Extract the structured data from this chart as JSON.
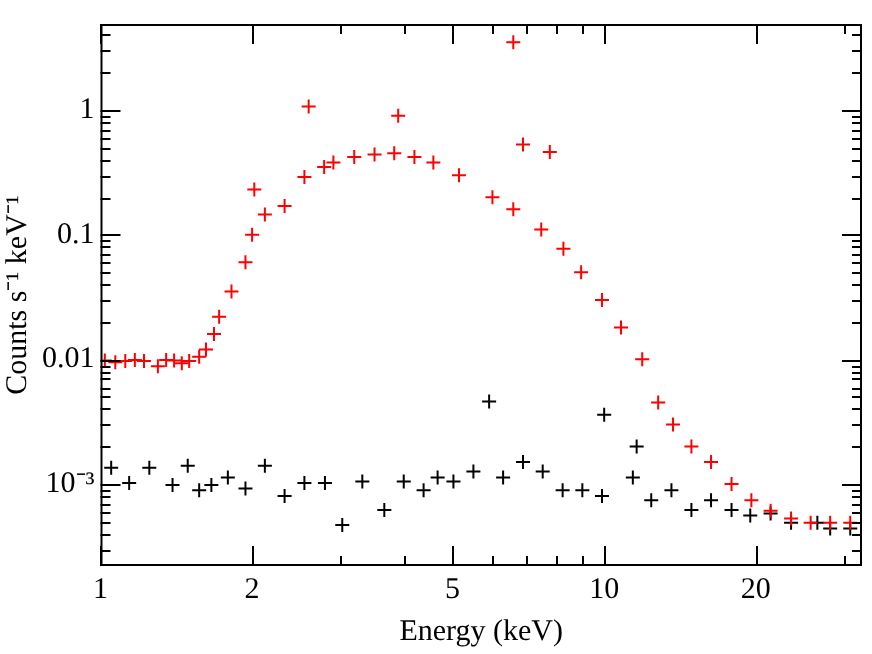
{
  "chart_data": {
    "type": "scatter",
    "xlabel": "Energy (keV)",
    "ylabel": "Counts s⁻¹ keV⁻¹",
    "log": "xy",
    "marker": "cross",
    "xlim": [
      1,
      32.5
    ],
    "ylim": [
      0.00022,
      4.9
    ],
    "xticks": [
      1,
      2,
      {
        "value": 3,
        "label": null
      },
      {
        "value": 4,
        "label": null
      },
      5,
      {
        "value": 6,
        "label": null
      },
      {
        "value": 7,
        "label": null
      },
      {
        "value": 8,
        "label": null
      },
      {
        "value": 9,
        "label": null
      },
      10,
      20,
      {
        "value": 30,
        "label": null
      }
    ],
    "yticks": [
      {
        "value": 0.0003,
        "label": null
      },
      {
        "value": 0.0004,
        "label": null
      },
      {
        "value": 0.0005,
        "label": null
      },
      {
        "value": 0.0006,
        "label": null
      },
      {
        "value": 0.0007,
        "label": null
      },
      {
        "value": 0.0008,
        "label": null
      },
      {
        "value": 0.0009,
        "label": null
      },
      {
        "value": 0.001,
        "label": "10⁻³"
      },
      {
        "value": 0.002,
        "label": null
      },
      {
        "value": 0.003,
        "label": null
      },
      {
        "value": 0.004,
        "label": null
      },
      {
        "value": 0.005,
        "label": null
      },
      {
        "value": 0.006,
        "label": null
      },
      {
        "value": 0.007,
        "label": null
      },
      {
        "value": 0.008,
        "label": null
      },
      {
        "value": 0.009,
        "label": null
      },
      0.01,
      {
        "value": 0.02,
        "label": null
      },
      {
        "value": 0.03,
        "label": null
      },
      {
        "value": 0.04,
        "label": null
      },
      {
        "value": 0.05,
        "label": null
      },
      {
        "value": 0.06,
        "label": null
      },
      {
        "value": 0.07,
        "label": null
      },
      {
        "value": 0.08,
        "label": null
      },
      {
        "value": 0.09,
        "label": null
      },
      0.1,
      {
        "value": 0.2,
        "label": null
      },
      {
        "value": 0.3,
        "label": null
      },
      {
        "value": 0.4,
        "label": null
      },
      {
        "value": 0.5,
        "label": null
      },
      {
        "value": 0.6,
        "label": null
      },
      {
        "value": 0.7,
        "label": null
      },
      {
        "value": 0.8,
        "label": null
      },
      {
        "value": 0.9,
        "label": null
      },
      1,
      {
        "value": 2,
        "label": null
      },
      {
        "value": 3,
        "label": null
      },
      {
        "value": 4,
        "label": null
      }
    ],
    "series": [
      {
        "color": "#ff0000",
        "x": [
          1.02,
          1.07,
          1.12,
          1.17,
          1.22,
          1.3,
          1.35,
          1.4,
          1.45,
          1.5,
          1.57,
          1.62,
          1.68,
          1.72,
          1.82,
          1.94,
          2.0,
          2.02,
          2.12,
          2.32,
          2.54,
          2.59,
          2.78,
          2.9,
          3.19,
          3.5,
          3.83,
          3.9,
          4.2,
          4.58,
          5.15,
          6.0,
          6.6,
          6.6,
          6.9,
          7.5,
          7.8,
          8.3,
          9.0,
          9.9,
          10.8,
          11.9,
          12.8,
          13.7,
          14.9,
          16.3,
          17.9,
          19.6,
          21.4,
          23.5,
          25.7,
          28.1,
          30.8
        ],
        "values": [
          0.0098,
          0.0095,
          0.0097,
          0.0099,
          0.0097,
          0.0088,
          0.0099,
          0.0098,
          0.0093,
          0.0097,
          0.0105,
          0.012,
          0.016,
          0.022,
          0.035,
          0.06,
          0.1,
          0.23,
          0.145,
          0.17,
          0.29,
          1.07,
          0.35,
          0.38,
          0.42,
          0.44,
          0.45,
          0.9,
          0.42,
          0.38,
          0.3,
          0.2,
          3.5,
          0.16,
          0.53,
          0.11,
          0.46,
          0.077,
          0.05,
          0.03,
          0.018,
          0.01,
          0.0045,
          0.003,
          0.002,
          0.0015,
          0.001,
          0.00074,
          0.00061,
          0.00053,
          0.00049,
          0.00049,
          0.00049
        ]
      },
      {
        "color": "#000000",
        "x": [
          1.05,
          1.14,
          1.25,
          1.39,
          1.49,
          1.57,
          1.66,
          1.79,
          1.94,
          2.12,
          2.32,
          2.54,
          2.79,
          3.02,
          3.31,
          3.66,
          4.0,
          4.38,
          4.67,
          5.02,
          5.5,
          5.91,
          6.3,
          6.9,
          7.55,
          8.27,
          9.05,
          9.9,
          10.0,
          11.4,
          11.6,
          12.4,
          13.6,
          14.9,
          16.3,
          17.9,
          19.5,
          21.4,
          23.5,
          26.5,
          28.1,
          30.8
        ],
        "values": [
          0.00135,
          0.00102,
          0.00135,
          0.00098,
          0.0014,
          0.00089,
          0.00098,
          0.00113,
          0.00092,
          0.0014,
          0.0008,
          0.00102,
          0.00102,
          0.00047,
          0.00105,
          0.00062,
          0.00105,
          0.00089,
          0.00113,
          0.00105,
          0.00126,
          0.0046,
          0.00113,
          0.0015,
          0.00126,
          0.00089,
          0.00089,
          0.0008,
          0.0036,
          0.00113,
          0.002,
          0.00074,
          0.00089,
          0.00062,
          0.00074,
          0.00062,
          0.00056,
          0.00058,
          0.00049,
          0.00049,
          0.00044,
          0.00044
        ]
      }
    ]
  }
}
